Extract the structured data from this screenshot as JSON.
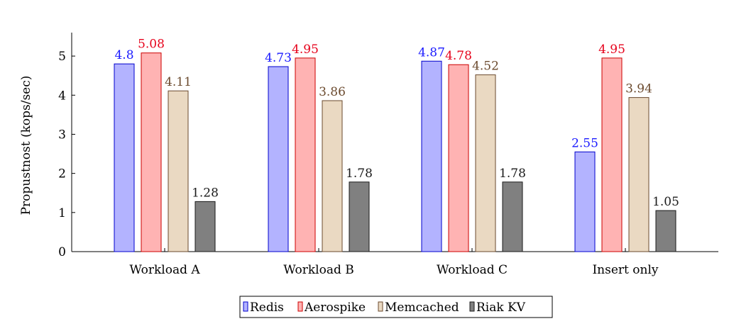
{
  "chart_data": {
    "type": "bar",
    "title": "",
    "xlabel": "",
    "ylabel": "Propustnost (kops/sec)",
    "ylim": [
      0,
      5.6
    ],
    "yticks": [
      0,
      1,
      2,
      3,
      4,
      5
    ],
    "categories": [
      "Workload A",
      "Workload B",
      "Workload C",
      "Insert only"
    ],
    "series": [
      {
        "name": "Redis",
        "values": [
          4.8,
          4.73,
          4.87,
          2.55
        ],
        "fill": "#b3b3ff",
        "stroke": "#0000cc",
        "label_color": "#1a1aff"
      },
      {
        "name": "Aerospike",
        "values": [
          5.08,
          4.95,
          4.78,
          4.95
        ],
        "fill": "#ffb3b3",
        "stroke": "#cc0000",
        "label_color": "#e6001a"
      },
      {
        "name": "Memcached",
        "values": [
          4.11,
          3.86,
          4.52,
          3.94
        ],
        "fill": "#ead9c2",
        "stroke": "#6b4a2e",
        "label_color": "#6b4a2e"
      },
      {
        "name": "Riak KV",
        "values": [
          1.28,
          1.78,
          1.78,
          1.05
        ],
        "fill": "#808080",
        "stroke": "#1a1a1a",
        "label_color": "#1a1a1a"
      }
    ],
    "legend_position": "bottom-center",
    "grid": false
  }
}
